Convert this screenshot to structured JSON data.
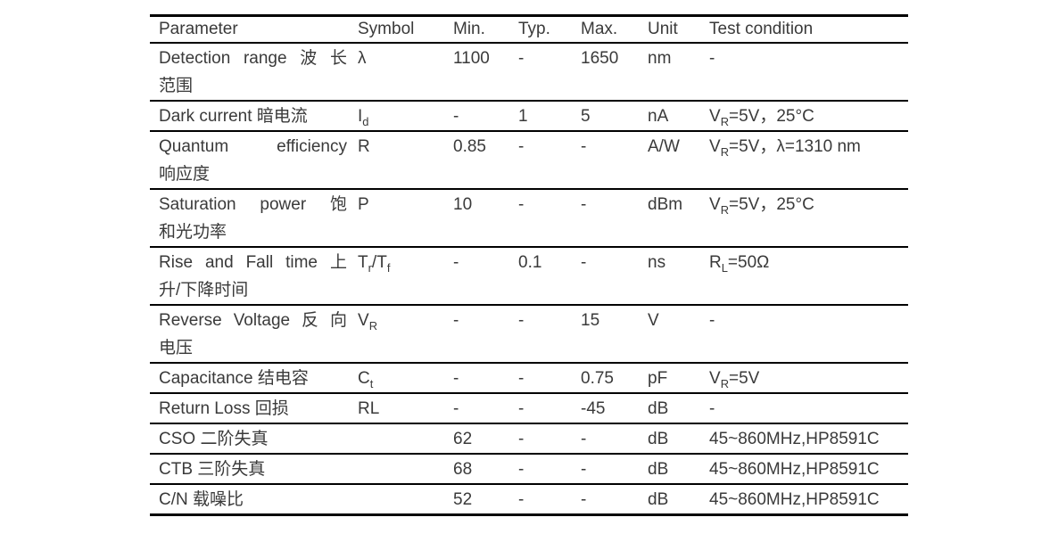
{
  "colors": {
    "text": "#3a3a3a",
    "line": "#000000",
    "background": "#ffffff"
  },
  "table": {
    "columns": [
      "Parameter",
      "Symbol",
      "Min.",
      "Typ.",
      "Max.",
      "Unit",
      "Test condition"
    ],
    "rows": [
      {
        "param_lines": [
          "Detection range 波长",
          "范围"
        ],
        "symbol": "λ",
        "min": "1100",
        "typ": "-",
        "max": "1650",
        "unit": "nm",
        "condition": "-"
      },
      {
        "param_lines": [
          "Dark current 暗电流"
        ],
        "symbol": "I_{d}",
        "min": "-",
        "typ": "1",
        "max": "5",
        "unit": "nA",
        "condition": "V_{R}=5V，25°C"
      },
      {
        "param_lines": [
          "Quantum efficiency",
          "响应度"
        ],
        "symbol": "R",
        "min": "0.85",
        "typ": "-",
        "max": "-",
        "unit": "A/W",
        "condition": "V_{R}=5V，λ=1310 nm"
      },
      {
        "param_lines": [
          "Saturation power 饱",
          "和光功率"
        ],
        "symbol": "P",
        "min": "10",
        "typ": "-",
        "max": "-",
        "unit": "dBm",
        "condition": "V_{R}=5V，25°C"
      },
      {
        "param_lines": [
          "Rise and Fall time 上",
          "升/下降时间"
        ],
        "symbol": "T_{r}/T_{f}",
        "min": "-",
        "typ": "0.1",
        "max": "-",
        "unit": "ns",
        "condition": "R_{L}=50Ω"
      },
      {
        "param_lines": [
          "Reverse Voltage 反向",
          "电压"
        ],
        "symbol": "V_{R}",
        "min": "-",
        "typ": "-",
        "max": "15",
        "unit": "V",
        "condition": "-"
      },
      {
        "param_lines": [
          "Capacitance 结电容"
        ],
        "symbol": "C_{t}",
        "min": "-",
        "typ": "-",
        "max": "0.75",
        "unit": "pF",
        "condition": "V_{R}=5V"
      },
      {
        "param_lines": [
          "Return Loss 回损"
        ],
        "symbol": "RL",
        "min": "-",
        "typ": "-",
        "max": "-45",
        "unit": "dB",
        "condition": "-"
      },
      {
        "param_lines": [
          "CSO 二阶失真"
        ],
        "symbol": "",
        "min": "62",
        "typ": "-",
        "max": "-",
        "unit": "dB",
        "condition": "45~860MHz,HP8591C"
      },
      {
        "param_lines": [
          "CTB 三阶失真"
        ],
        "symbol": "",
        "min": "68",
        "typ": "-",
        "max": "-",
        "unit": "dB",
        "condition": "45~860MHz,HP8591C"
      },
      {
        "param_lines": [
          "C/N 载噪比"
        ],
        "symbol": "",
        "min": "52",
        "typ": "-",
        "max": "-",
        "unit": "dB",
        "condition": "45~860MHz,HP8591C"
      }
    ]
  }
}
